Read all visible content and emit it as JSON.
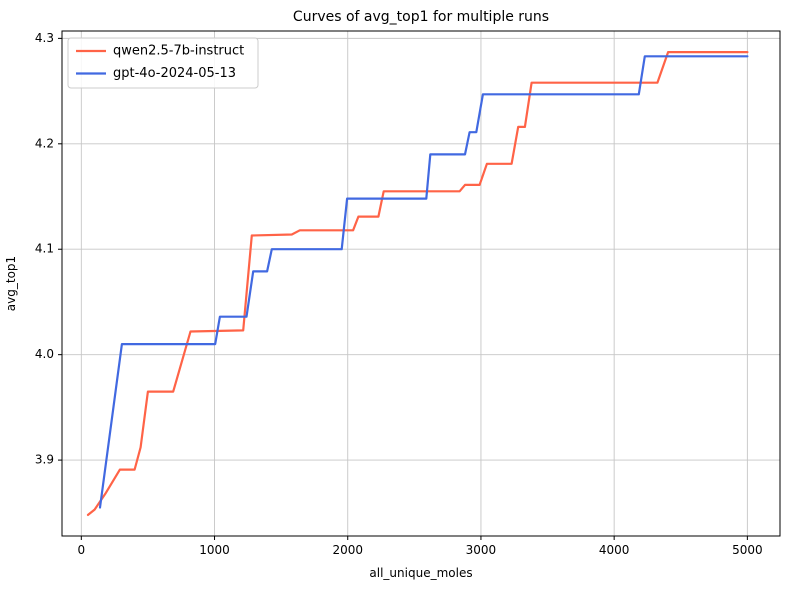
{
  "chart_data": {
    "type": "line",
    "title": "Curves of avg_top1 for multiple runs",
    "xlabel": "all_unique_moles",
    "ylabel": "avg_top1",
    "xlim": [
      -145,
      5245
    ],
    "ylim": [
      3.828,
      4.307
    ],
    "grid": true,
    "legend_position": "upper left",
    "xticks": [
      {
        "v": 0,
        "label": "0"
      },
      {
        "v": 1000,
        "label": "1000"
      },
      {
        "v": 2000,
        "label": "2000"
      },
      {
        "v": 3000,
        "label": "3000"
      },
      {
        "v": 4000,
        "label": "4000"
      },
      {
        "v": 5000,
        "label": "5000"
      }
    ],
    "yticks": [
      {
        "v": 3.9,
        "label": "3.9"
      },
      {
        "v": 4.0,
        "label": "4.0"
      },
      {
        "v": 4.1,
        "label": "4.1"
      },
      {
        "v": 4.2,
        "label": "4.2"
      },
      {
        "v": 4.3,
        "label": "4.3"
      }
    ],
    "series": [
      {
        "name": "qwen2.5-7b-instruct",
        "color": "#ff6347",
        "points": [
          [
            50,
            3.848
          ],
          [
            100,
            3.853
          ],
          [
            180,
            3.868
          ],
          [
            290,
            3.891
          ],
          [
            400,
            3.891
          ],
          [
            445,
            3.912
          ],
          [
            500,
            3.965
          ],
          [
            690,
            3.965
          ],
          [
            820,
            4.022
          ],
          [
            1215,
            4.023
          ],
          [
            1280,
            4.113
          ],
          [
            1580,
            4.114
          ],
          [
            1640,
            4.118
          ],
          [
            2040,
            4.118
          ],
          [
            2080,
            4.131
          ],
          [
            2230,
            4.131
          ],
          [
            2270,
            4.155
          ],
          [
            2840,
            4.155
          ],
          [
            2880,
            4.161
          ],
          [
            2990,
            4.161
          ],
          [
            3045,
            4.181
          ],
          [
            3230,
            4.181
          ],
          [
            3280,
            4.216
          ],
          [
            3330,
            4.216
          ],
          [
            3380,
            4.258
          ],
          [
            4325,
            4.258
          ],
          [
            4405,
            4.287
          ],
          [
            5000,
            4.287
          ]
        ]
      },
      {
        "name": "gpt-4o-2024-05-13",
        "color": "#4169e1",
        "points": [
          [
            140,
            3.855
          ],
          [
            305,
            4.01
          ],
          [
            1005,
            4.01
          ],
          [
            1040,
            4.036
          ],
          [
            1240,
            4.036
          ],
          [
            1290,
            4.079
          ],
          [
            1395,
            4.079
          ],
          [
            1430,
            4.1
          ],
          [
            1955,
            4.1
          ],
          [
            1995,
            4.148
          ],
          [
            2590,
            4.148
          ],
          [
            2620,
            4.19
          ],
          [
            2880,
            4.19
          ],
          [
            2915,
            4.211
          ],
          [
            2965,
            4.211
          ],
          [
            3015,
            4.247
          ],
          [
            4185,
            4.247
          ],
          [
            4230,
            4.283
          ],
          [
            5000,
            4.283
          ]
        ]
      }
    ],
    "styles": {
      "grid_color": "#c6c6c6",
      "spine_color": "#000000",
      "background": "#ffffff"
    }
  }
}
